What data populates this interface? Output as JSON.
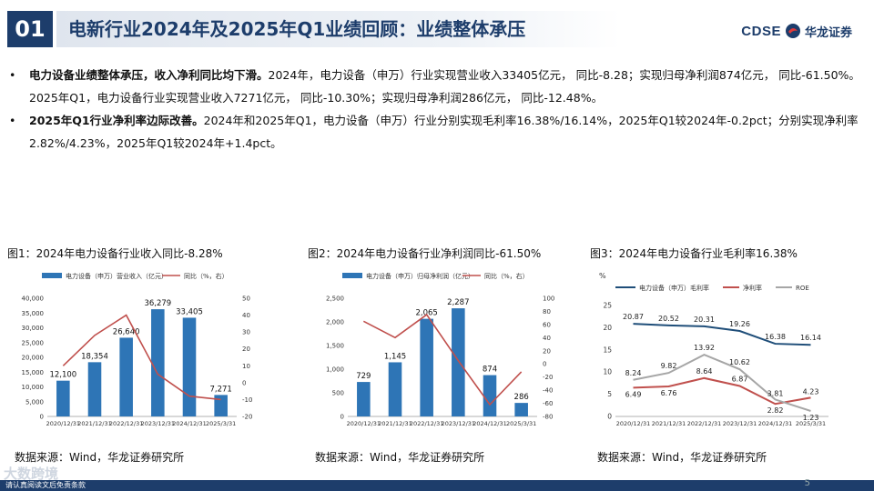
{
  "header": {
    "section_number": "01",
    "title": "电新行业2024年及2025年Q1业绩回顾：业绩整体承压",
    "logo_en": "CDSE",
    "logo_cn": "华龙证券"
  },
  "bullets": [
    {
      "marker": "•",
      "bold": "电力设备业绩整体承压，收入净利同比均下滑。",
      "text": "2024年，电力设备（申万）行业实现营业收入33405亿元， 同比-8.28；实现归母净利润874亿元， 同比-61.50%。2025年Q1，电力设备行业实现营业收入7271亿元， 同比-10.30%；实现归母净利润286亿元， 同比-12.48%。"
    },
    {
      "marker": "•",
      "bold": "2025年Q1行业净利率边际改善。",
      "text": "2024年和2025年Q1，电力设备（申万）行业分别实现毛利率16.38%/16.14%，2025年Q1较2024年-0.2pct；分别实现净利率2.82%/4.23%，2025年Q1较2024年+1.4pct。"
    }
  ],
  "charts": [
    {
      "title": "图1：2024年电力设备行业收入同比-8.28%",
      "source": "数据来源：Wind，华龙证券研究所"
    },
    {
      "title": "图2：2024年电力设备行业净利润同比-61.50%",
      "source": "数据来源：Wind，华龙证券研究所"
    },
    {
      "title": "图3：2024年电力设备行业毛利率16.38%",
      "source": "数据来源：Wind，华龙证券研究所"
    }
  ],
  "chart_data": [
    {
      "type": "bar+line",
      "categories": [
        "2020/12/31",
        "2021/12/31",
        "2022/12/31",
        "2023/12/31",
        "2024/12/31",
        "2025/3/31"
      ],
      "bar_series": {
        "name": "电力设备（申万）营业收入（亿元）",
        "values": [
          12100,
          18354,
          26640,
          36279,
          33405,
          7271
        ],
        "labels": [
          "12,100",
          "18,354",
          "26,640",
          "36,279",
          "33,405",
          "7,271"
        ]
      },
      "line_series": {
        "name": "同比（%，右）",
        "values": [
          10,
          28,
          40,
          5,
          -8,
          -10
        ]
      },
      "ylim": [
        0,
        40000
      ],
      "yticks": [
        0,
        5000,
        10000,
        15000,
        20000,
        25000,
        30000,
        35000,
        40000
      ],
      "ytick_labels": [
        "0",
        "5,000",
        "10,000",
        "15,000",
        "20,000",
        "25,000",
        "30,000",
        "35,000",
        "40,000"
      ],
      "y2lim": [
        -20,
        50
      ],
      "y2ticks": [
        -20,
        -10,
        0,
        10,
        20,
        30,
        40,
        50
      ],
      "y2tick_labels": [
        "-20",
        "-10",
        "0",
        "10",
        "20",
        "30",
        "40",
        "50"
      ],
      "legend_position": "top",
      "colors": {
        "bar": "#2e75b6",
        "line": "#c0504d"
      }
    },
    {
      "type": "bar+line",
      "categories": [
        "2020/12/31",
        "2021/12/31",
        "2022/12/31",
        "2023/12/31",
        "2024/12/31",
        "2025/3/31"
      ],
      "bar_series": {
        "name": "电力设备（申万）归母净利润（亿元）",
        "values": [
          729,
          1145,
          2065,
          2287,
          874,
          286
        ],
        "labels": [
          "729",
          "1,145",
          "2,065",
          "2,287",
          "874",
          "286"
        ]
      },
      "line_series": {
        "name": "同比（%，右）",
        "values": [
          65,
          40,
          75,
          5,
          -62,
          -12
        ]
      },
      "ylim": [
        0,
        2500
      ],
      "yticks": [
        0,
        500,
        1000,
        1500,
        2000,
        2500
      ],
      "ytick_labels": [
        "0",
        "500",
        "1,000",
        "1,500",
        "2,000",
        "2,500"
      ],
      "y2lim": [
        -80,
        100
      ],
      "y2ticks": [
        -80,
        -60,
        -40,
        -20,
        0,
        20,
        40,
        60,
        80,
        100
      ],
      "y2tick_labels": [
        "-80",
        "-60",
        "-40",
        "-20",
        "0",
        "20",
        "40",
        "60",
        "80",
        "100"
      ],
      "legend_position": "top",
      "colors": {
        "bar": "#2e75b6",
        "line": "#c0504d"
      }
    },
    {
      "type": "line",
      "categories": [
        "2020/12/31",
        "2021/12/31",
        "2022/12/31",
        "2023/12/31",
        "2024/12/31",
        "2025/3/31"
      ],
      "ylabel": "%",
      "ylim": [
        0,
        25
      ],
      "yticks": [
        0,
        5,
        10,
        15,
        20,
        25
      ],
      "ytick_labels": [
        "0",
        "5",
        "10",
        "15",
        "20",
        "25"
      ],
      "series": [
        {
          "name": "电力设备（申万）毛利率",
          "values": [
            20.87,
            20.52,
            20.31,
            19.26,
            16.38,
            16.14
          ],
          "labels": [
            "20.87",
            "20.52",
            "20.31",
            "19.26",
            "16.38",
            "16.14"
          ],
          "color": "#1f4e79",
          "width": 2
        },
        {
          "name": "净利率",
          "values": [
            6.49,
            6.76,
            8.64,
            6.87,
            2.82,
            4.23
          ],
          "labels": [
            "6.49",
            "6.76",
            "8.64",
            "6.87",
            "2.82",
            "4.23"
          ],
          "color": "#c0504d",
          "width": 2
        },
        {
          "name": "ROE",
          "values": [
            8.24,
            9.82,
            13.92,
            10.62,
            3.81,
            1.23
          ],
          "labels": [
            "8.24",
            "9.82",
            "13.92",
            "10.62",
            "3.81",
            "1.23"
          ],
          "color": "#a6a6a6",
          "width": 2
        }
      ],
      "legend_position": "top"
    }
  ],
  "footer": {
    "note": "请认真阅读文后免责条款",
    "page_number": "5",
    "watermark": "大数跨境"
  }
}
